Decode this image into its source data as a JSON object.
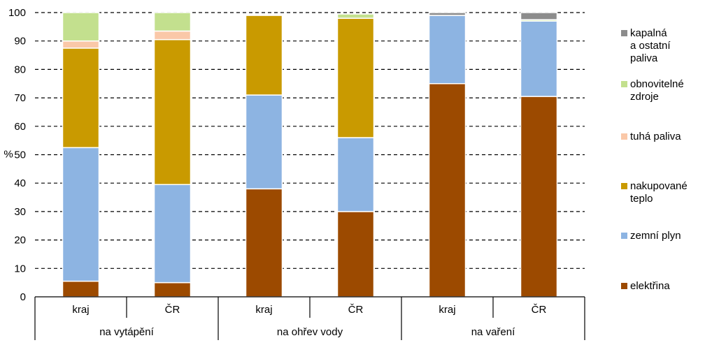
{
  "chart_data": {
    "type": "bar",
    "stacked": true,
    "ylabel": "%",
    "ylim": [
      0,
      100
    ],
    "yticks": [
      0,
      10,
      20,
      30,
      40,
      50,
      60,
      70,
      80,
      90,
      100
    ],
    "grid": "horizontal-dashed",
    "legend_position": "right",
    "groups": [
      {
        "label": "na vytápění",
        "bars": [
          "kraj",
          "ČR"
        ]
      },
      {
        "label": "na ohřev vody",
        "bars": [
          "kraj",
          "ČR"
        ]
      },
      {
        "label": "na vaření",
        "bars": [
          "kraj",
          "ČR"
        ]
      }
    ],
    "categories": [
      "kraj",
      "ČR",
      "kraj",
      "ČR",
      "kraj",
      "ČR"
    ],
    "series": [
      {
        "name": "elektřina",
        "color": "#9C4A00",
        "values": [
          5.5,
          5,
          38,
          30,
          75,
          70.5
        ]
      },
      {
        "name": "zemní plyn",
        "color": "#8DB4E2",
        "values": [
          47,
          34.5,
          33,
          26,
          24,
          26.5
        ]
      },
      {
        "name": "nakupované teplo",
        "color": "#C99A00",
        "values": [
          35,
          51,
          28,
          42,
          0,
          0
        ]
      },
      {
        "name": "tuhá paliva",
        "color": "#FAC8A8",
        "values": [
          2.5,
          3,
          0,
          0,
          0,
          0
        ]
      },
      {
        "name": "obnovitelné zdroje",
        "color": "#C3E08E",
        "values": [
          10,
          6.5,
          0,
          1.5,
          0,
          0.5
        ]
      },
      {
        "name": "kapalná a ostatní paliva",
        "color": "#8C8C8C",
        "values": [
          0,
          0,
          0,
          0,
          1,
          2.5
        ]
      }
    ]
  }
}
